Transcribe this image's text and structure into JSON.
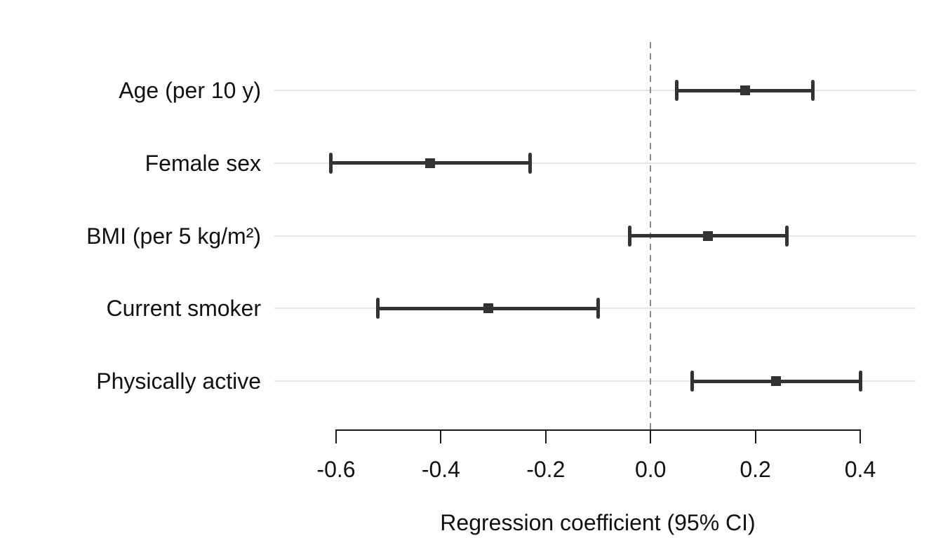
{
  "chart_data": {
    "type": "scatter",
    "variant": "forest-plot-horizontal-ci",
    "title": "",
    "xlabel": "Regression coefficient (95% CI)",
    "ylabel": "",
    "rows": [
      {
        "label": "Age (per 10 y)",
        "estimate": 0.18,
        "ci_low": 0.05,
        "ci_high": 0.31
      },
      {
        "label": "Female sex",
        "estimate": -0.42,
        "ci_low": -0.61,
        "ci_high": -0.23
      },
      {
        "label": "BMI (per 5 kg/m²)",
        "estimate": 0.11,
        "ci_low": -0.04,
        "ci_high": 0.26
      },
      {
        "label": "Current smoker",
        "estimate": -0.31,
        "ci_low": -0.52,
        "ci_high": -0.1
      },
      {
        "label": "Physically active",
        "estimate": 0.24,
        "ci_low": 0.08,
        "ci_high": 0.4
      }
    ],
    "x_axis": {
      "ticks": [
        {
          "value": -0.6,
          "label": "-0.6"
        },
        {
          "value": -0.4,
          "label": "-0.4"
        },
        {
          "value": -0.2,
          "label": "-0.2"
        },
        {
          "value": 0.0,
          "label": "0.0"
        },
        {
          "value": 0.2,
          "label": "0.2"
        },
        {
          "value": 0.4,
          "label": "0.4"
        }
      ],
      "axis_range": [
        -0.6,
        0.4
      ],
      "plot_range": [
        -0.72,
        0.51
      ]
    },
    "reference_line": {
      "value": 0.0,
      "style": "dashed"
    },
    "grid": "horizontal-row-gridlines",
    "legend": "none",
    "colors": {
      "marker": "#333333",
      "gridline": "#e4e4e4",
      "reference_line": "#8a8a8a",
      "axis": "#1a1a1a",
      "text": "#111111",
      "background": "#ffffff"
    }
  }
}
